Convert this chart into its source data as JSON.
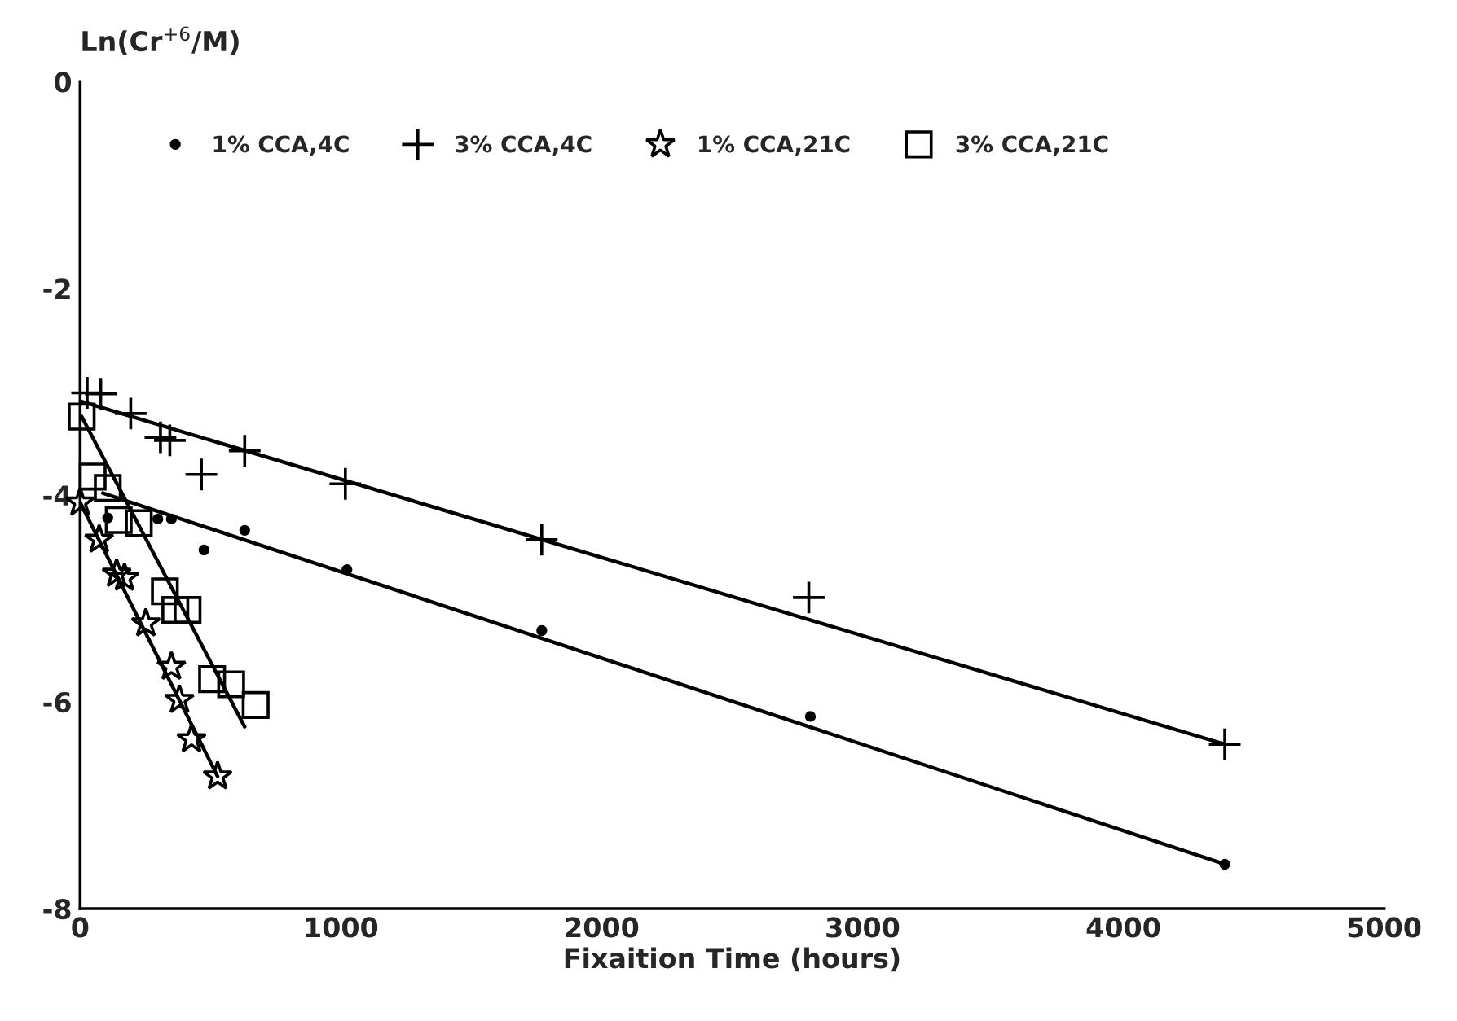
{
  "chart_data": {
    "type": "scatter",
    "xlabel": "Fixaition Time (hours)",
    "ylabel": "Ln(Cr$^{+6}$/M)",
    "xlim": [
      0,
      5000
    ],
    "ylim": [
      -8,
      0
    ],
    "xticks": [
      0,
      1000,
      2000,
      3000,
      4000,
      5000
    ],
    "yticks": [
      0,
      -2,
      -4,
      -6,
      -8
    ],
    "grid": false,
    "legend": "top",
    "series": [
      {
        "name": "1% CCA,4C",
        "marker": "circle",
        "color": "#000000",
        "x": [
          106,
          298,
          350,
          475,
          631,
          1023,
          1770,
          2800,
          4389
        ],
        "values": [
          -4.22,
          -4.23,
          -4.23,
          -4.53,
          -4.34,
          -4.72,
          -5.31,
          -6.14,
          -7.57
        ]
      },
      {
        "name": "3% CCA,4C",
        "marker": "cross",
        "color": "#000000",
        "x": [
          27,
          79,
          194,
          308,
          344,
          465,
          631,
          1017,
          1770,
          2794,
          4389
        ],
        "values": [
          -3.01,
          -3.02,
          -3.21,
          -3.44,
          -3.47,
          -3.8,
          -3.57,
          -3.89,
          -4.43,
          -4.99,
          -6.41
        ]
      },
      {
        "name": "1% CCA,21C",
        "marker": "star",
        "color": "#000000",
        "x": [
          0,
          73,
          140,
          170,
          252,
          350,
          381,
          427,
          527
        ],
        "values": [
          -4.07,
          -4.43,
          -4.76,
          -4.8,
          -5.24,
          -5.66,
          -5.98,
          -6.36,
          -6.72
        ]
      },
      {
        "name": "3% CCA,21C",
        "marker": "square",
        "color": "#000000",
        "x": [
          6,
          48,
          106,
          148,
          225,
          325,
          365,
          412,
          506,
          579,
          673
        ],
        "values": [
          -3.24,
          -3.82,
          -3.93,
          -4.24,
          -4.27,
          -4.93,
          -5.11,
          -5.11,
          -5.78,
          -5.83,
          -6.03
        ]
      },
      {
        "type": "line",
        "color": "#000000",
        "x": [
          87,
          4389
        ],
        "values": [
          -3.98,
          -7.57
        ]
      },
      {
        "type": "line",
        "color": "#000000",
        "x": [
          0,
          4389
        ],
        "values": [
          -3.09,
          -6.41
        ]
      },
      {
        "type": "line",
        "color": "#000000",
        "x": [
          0,
          527
        ],
        "values": [
          -4.07,
          -6.72
        ]
      },
      {
        "type": "line",
        "color": "#000000",
        "x": [
          6,
          631
        ],
        "values": [
          -3.24,
          -6.24
        ]
      }
    ]
  }
}
